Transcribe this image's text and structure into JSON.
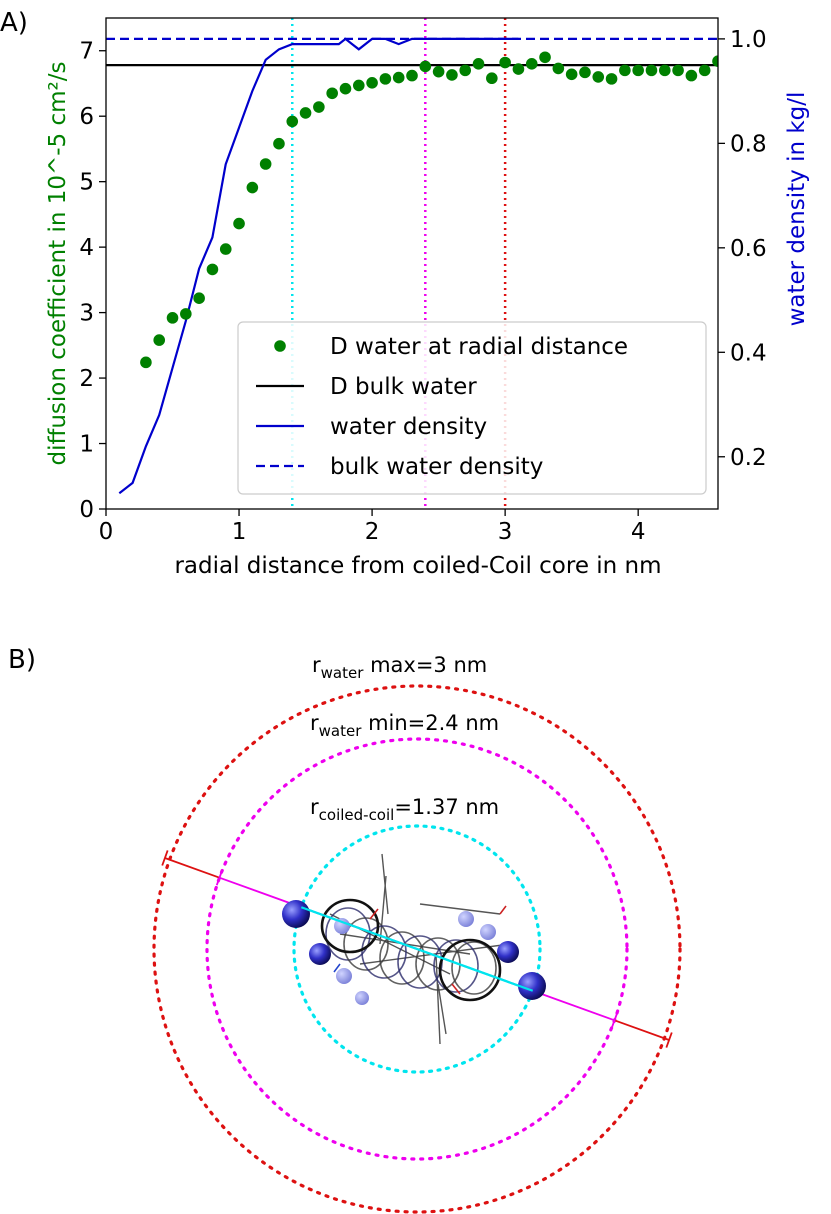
{
  "panel_a_label": "A)",
  "panel_b_label": "B)",
  "chart_data": {
    "type": "scatter",
    "xlabel": "radial distance from coiled-Coil core in nm",
    "ylabel": "diffusion coefficient in 10^-5 cm²/s",
    "ylabel_right": "water density in kg/l",
    "xlim": [
      0,
      4.6
    ],
    "ylim": [
      0,
      7.5
    ],
    "ylim_right": [
      0.1,
      1.04
    ],
    "x_ticks": [
      "0",
      "1",
      "2",
      "3",
      "4"
    ],
    "y_ticks": [
      "0",
      "1",
      "2",
      "3",
      "4",
      "5",
      "6",
      "7"
    ],
    "y_right_ticks": [
      "0.2",
      "0.4",
      "0.6",
      "0.8",
      "1.0"
    ],
    "legend_position": "lower right",
    "colors": {
      "diffusion": "#008000",
      "bulk_D": "#000000",
      "density": "#0000cc",
      "cyan": "#00e5ee",
      "magenta": "#ee00ee",
      "red": "#dd1111"
    },
    "series": [
      {
        "name": "D water at radial distance",
        "kind": "scatter",
        "axis": "left",
        "x": [
          0.3,
          0.4,
          0.5,
          0.6,
          0.7,
          0.8,
          0.9,
          1.0,
          1.1,
          1.2,
          1.3,
          1.4,
          1.5,
          1.6,
          1.7,
          1.8,
          1.9,
          2.0,
          2.1,
          2.2,
          2.3,
          2.4,
          2.5,
          2.6,
          2.7,
          2.8,
          2.9,
          3.0,
          3.1,
          3.2,
          3.3,
          3.4,
          3.5,
          3.6,
          3.7,
          3.8,
          3.9,
          4.0,
          4.1,
          4.2,
          4.3,
          4.4,
          4.5,
          4.6
        ],
        "y": [
          2.24,
          2.58,
          2.92,
          2.98,
          3.22,
          3.66,
          3.97,
          4.36,
          4.91,
          5.27,
          5.58,
          5.92,
          6.05,
          6.14,
          6.35,
          6.42,
          6.47,
          6.51,
          6.57,
          6.59,
          6.62,
          6.76,
          6.68,
          6.63,
          6.7,
          6.8,
          6.58,
          6.82,
          6.72,
          6.8,
          6.9,
          6.73,
          6.64,
          6.67,
          6.6,
          6.57,
          6.7,
          6.7,
          6.7,
          6.7,
          6.7,
          6.62,
          6.7,
          6.84
        ]
      },
      {
        "name": "D bulk water",
        "kind": "hline",
        "axis": "left",
        "y": 6.78
      },
      {
        "name": "water density",
        "kind": "line",
        "axis": "right",
        "x": [
          0.1,
          0.2,
          0.3,
          0.4,
          0.5,
          0.6,
          0.7,
          0.8,
          0.9,
          1.0,
          1.1,
          1.2,
          1.3,
          1.4,
          1.5,
          1.6,
          1.7,
          1.75,
          1.8,
          1.85,
          1.9,
          2.0,
          2.1,
          2.2,
          2.3,
          2.4,
          2.5,
          2.6,
          2.7,
          2.8,
          2.9,
          3.0,
          3.1
        ],
        "y": [
          0.13,
          0.15,
          0.22,
          0.28,
          0.37,
          0.46,
          0.56,
          0.62,
          0.76,
          0.83,
          0.9,
          0.96,
          0.98,
          0.99,
          0.99,
          0.99,
          0.99,
          0.99,
          1.0,
          0.99,
          0.98,
          1.0,
          1.0,
          0.99,
          1.0,
          1.0,
          1.0,
          1.0,
          1.0,
          1.0,
          1.0,
          1.0,
          1.0
        ]
      },
      {
        "name": "bulk water density",
        "kind": "hline-dashed",
        "axis": "right",
        "y": 1.0
      }
    ],
    "vlines": [
      {
        "x": 1.4,
        "color": "cyan"
      },
      {
        "x": 2.4,
        "color": "magenta"
      },
      {
        "x": 3.0,
        "color": "red"
      }
    ]
  },
  "diagram": {
    "circles": [
      {
        "label_sub": "water",
        "label_text": "max=3 nm",
        "color": "red"
      },
      {
        "label_sub": "water",
        "label_text": "min=2.4 nm",
        "color": "magenta"
      },
      {
        "label_sub": "coiled-coil",
        "label_text": "=1.37 nm",
        "color": "cyan"
      }
    ],
    "r_letter": "r"
  }
}
